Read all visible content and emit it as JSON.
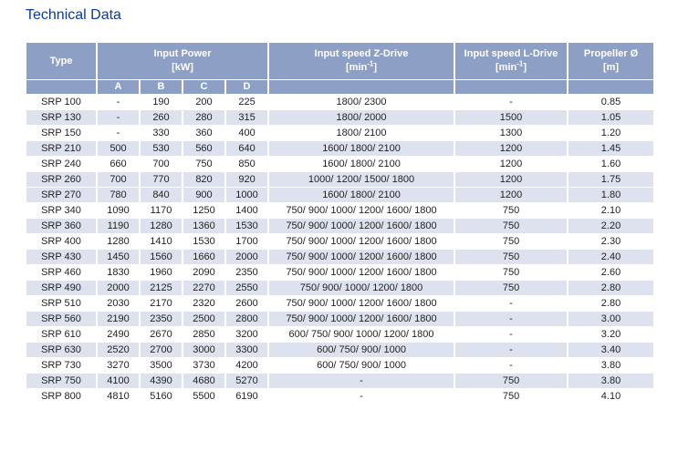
{
  "page": {
    "title": "Technical Data"
  },
  "colors": {
    "header_bg": "#8d9fc4",
    "row_alt": "#dee2ee",
    "title_color": "#0d3a9d"
  },
  "table": {
    "header": {
      "type": "Type",
      "input_power": {
        "title": "Input Power",
        "unit": "[kW]"
      },
      "z_drive": {
        "title": "Input speed Z-Drive",
        "unit_pre": "[min",
        "unit_sup": "-1",
        "unit_post": "]"
      },
      "l_drive": {
        "title": "Input speed L-Drive",
        "unit_pre": "[min",
        "unit_sup": "-1",
        "unit_post": "]"
      },
      "propeller": {
        "title": "Propeller Ø",
        "unit": "[m]"
      },
      "subcolumns": [
        "A",
        "B",
        "C",
        "D"
      ]
    },
    "rows": [
      {
        "type": "SRP 100",
        "a": "-",
        "b": "190",
        "c": "200",
        "d": "225",
        "z": "1800/ 2300",
        "l": "-",
        "prop": "0.85",
        "shaded": false
      },
      {
        "type": "SRP 130",
        "a": "-",
        "b": "260",
        "c": "280",
        "d": "315",
        "z": "1800/ 2000",
        "l": "1500",
        "prop": "1.05",
        "shaded": true
      },
      {
        "type": "SRP 150",
        "a": "-",
        "b": "330",
        "c": "360",
        "d": "400",
        "z": "1800/ 2100",
        "l": "1300",
        "prop": "1.20",
        "shaded": false
      },
      {
        "type": "SRP 210",
        "a": "500",
        "b": "530",
        "c": "560",
        "d": "640",
        "z": "1600/ 1800/ 2100",
        "l": "1200",
        "prop": "1.45",
        "shaded": true
      },
      {
        "type": "SRP 240",
        "a": "660",
        "b": "700",
        "c": "750",
        "d": "850",
        "z": "1600/ 1800/ 2100",
        "l": "1200",
        "prop": "1.60",
        "shaded": false
      },
      {
        "type": "SRP 260",
        "a": "700",
        "b": "770",
        "c": "820",
        "d": "920",
        "z": "1000/ 1200/ 1500/ 1800",
        "l": "1200",
        "prop": "1.75",
        "shaded": true
      },
      {
        "type": "SRP 270",
        "a": "780",
        "b": "840",
        "c": "900",
        "d": "1000",
        "z": "1600/ 1800/ 2100",
        "l": "1200",
        "prop": "1.80",
        "shaded": true
      },
      {
        "type": "SRP 340",
        "a": "1090",
        "b": "1170",
        "c": "1250",
        "d": "1400",
        "z": "750/ 900/ 1000/ 1200/ 1600/ 1800",
        "l": "750",
        "prop": "2.10",
        "shaded": false
      },
      {
        "type": "SRP 360",
        "a": "1190",
        "b": "1280",
        "c": "1360",
        "d": "1530",
        "z": "750/ 900/ 1000/ 1200/ 1600/ 1800",
        "l": "750",
        "prop": "2.20",
        "shaded": true
      },
      {
        "type": "SRP 400",
        "a": "1280",
        "b": "1410",
        "c": "1530",
        "d": "1700",
        "z": "750/ 900/ 1000/ 1200/ 1600/ 1800",
        "l": "750",
        "prop": "2.30",
        "shaded": false
      },
      {
        "type": "SRP 430",
        "a": "1450",
        "b": "1560",
        "c": "1660",
        "d": "2000",
        "z": "750/ 900/ 1000/ 1200/ 1600/ 1800",
        "l": "750",
        "prop": "2.40",
        "shaded": true
      },
      {
        "type": "SRP 460",
        "a": "1830",
        "b": "1960",
        "c": "2090",
        "d": "2350",
        "z": "750/ 900/ 1000/ 1200/ 1600/ 1800",
        "l": "750",
        "prop": "2.60",
        "shaded": false
      },
      {
        "type": "SRP 490",
        "a": "2000",
        "b": "2125",
        "c": "2270",
        "d": "2550",
        "z": "750/ 900/ 1000/ 1200/ 1800",
        "l": "750",
        "prop": "2.80",
        "shaded": true
      },
      {
        "type": "SRP 510",
        "a": "2030",
        "b": "2170",
        "c": "2320",
        "d": "2600",
        "z": "750/ 900/ 1000/ 1200/ 1600/ 1800",
        "l": "-",
        "prop": "2.80",
        "shaded": false
      },
      {
        "type": "SRP 560",
        "a": "2190",
        "b": "2350",
        "c": "2500",
        "d": "2800",
        "z": "750/ 900/ 1000/ 1200/ 1600/ 1800",
        "l": "-",
        "prop": "3.00",
        "shaded": true
      },
      {
        "type": "SRP 610",
        "a": "2490",
        "b": "2670",
        "c": "2850",
        "d": "3200",
        "z": "600/ 750/ 900/ 1000/ 1200/ 1800",
        "l": "-",
        "prop": "3.20",
        "shaded": false
      },
      {
        "type": "SRP 630",
        "a": "2520",
        "b": "2700",
        "c": "3000",
        "d": "3300",
        "z": "600/ 750/ 900/ 1000",
        "l": "-",
        "prop": "3.40",
        "shaded": true
      },
      {
        "type": "SRP 730",
        "a": "3270",
        "b": "3500",
        "c": "3730",
        "d": "4200",
        "z": "600/ 750/ 900/ 1000",
        "l": "-",
        "prop": "3.80",
        "shaded": false
      },
      {
        "type": "SRP 750",
        "a": "4100",
        "b": "4390",
        "c": "4680",
        "d": "5270",
        "z": "-",
        "l": "750",
        "prop": "3.80",
        "shaded": true
      },
      {
        "type": "SRP 800",
        "a": "4810",
        "b": "5160",
        "c": "5500",
        "d": "6190",
        "z": "-",
        "l": "750",
        "prop": "4.10",
        "shaded": false
      }
    ]
  }
}
